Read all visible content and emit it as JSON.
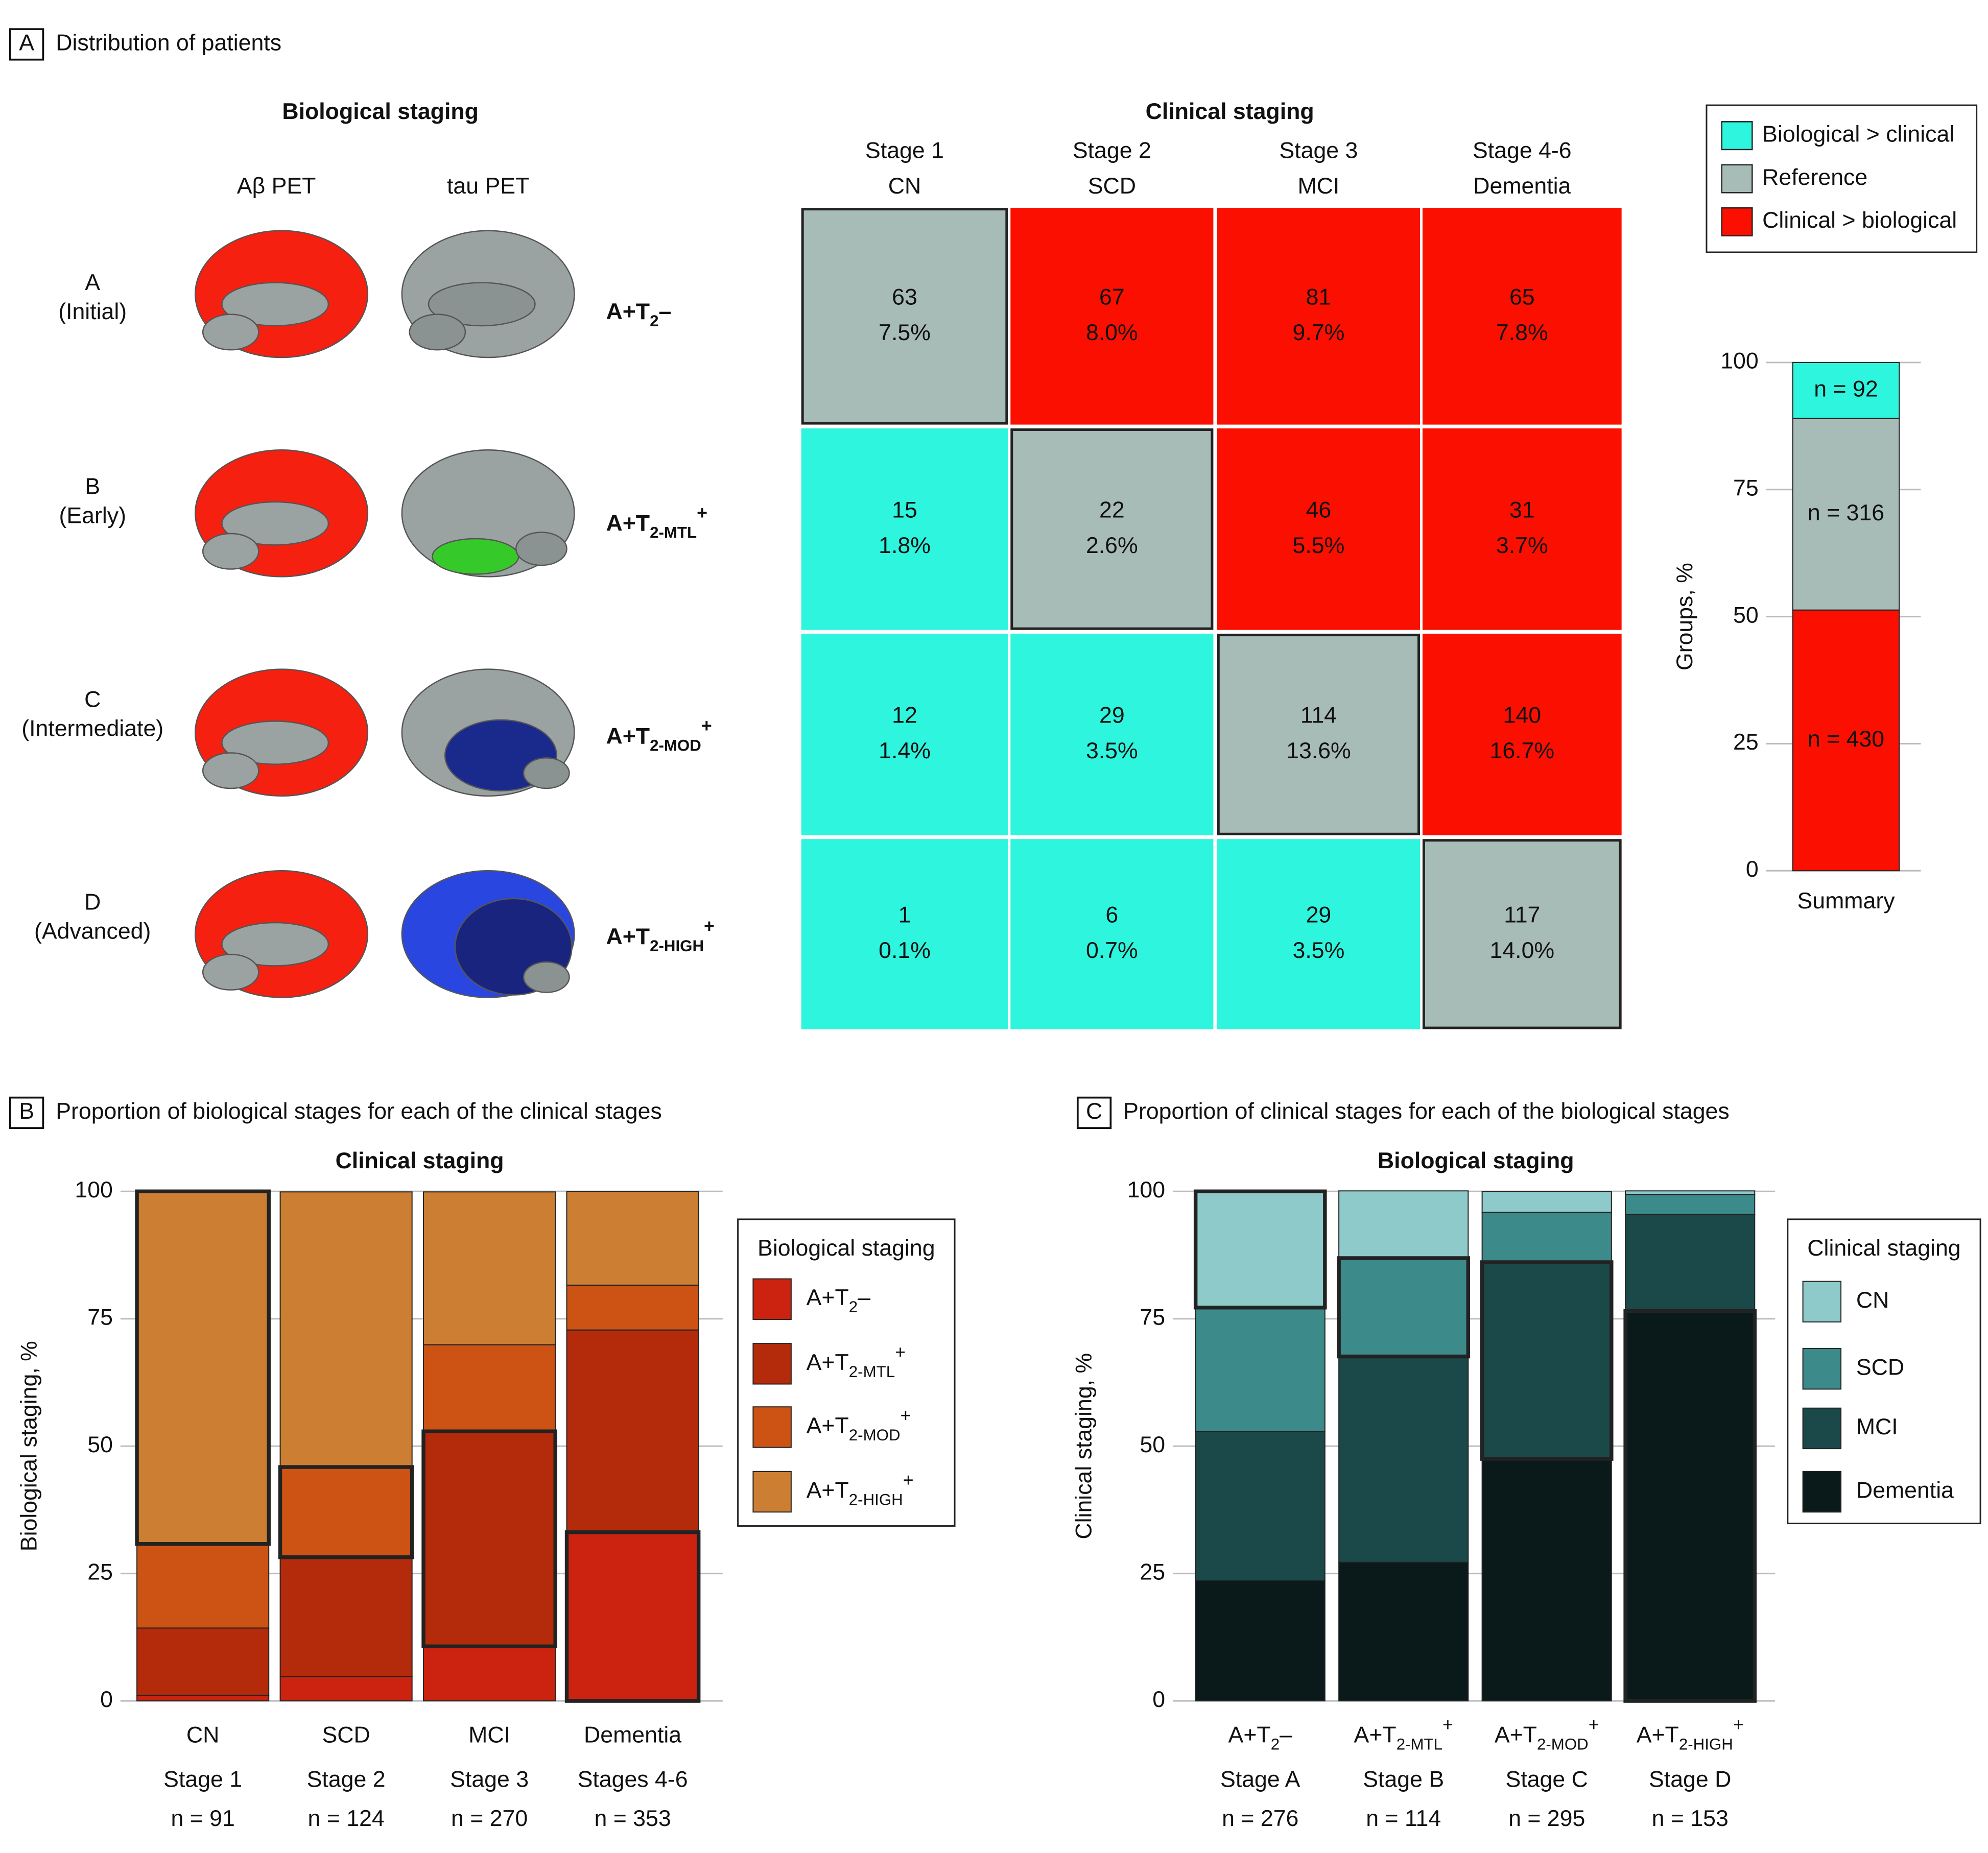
{
  "chart_data": [
    {
      "type": "matrix",
      "panel": "A",
      "title": "Distribution of patients",
      "row_title": "Biological staging",
      "col_title": "Clinical staging",
      "tracer_labels": [
        "Aβ PET",
        "tau PET"
      ],
      "rows": [
        {
          "letter": "A",
          "name": "(Initial)",
          "stage": {
            "main": "A+T",
            "sub": "2",
            "end": "–"
          }
        },
        {
          "letter": "B",
          "name": "(Early)",
          "stage": {
            "main": "A+T",
            "sub": "2-MTL",
            "sup": "+"
          }
        },
        {
          "letter": "C",
          "name": "(Intermediate)",
          "stage": {
            "main": "A+T",
            "sub": "2-MOD",
            "sup": "+"
          }
        },
        {
          "letter": "D",
          "name": "(Advanced)",
          "stage": {
            "main": "A+T",
            "sub": "2-HIGH",
            "sup": "+"
          }
        }
      ],
      "columns": [
        {
          "stage": "Stage 1",
          "name": "CN"
        },
        {
          "stage": "Stage 2",
          "name": "SCD"
        },
        {
          "stage": "Stage 3",
          "name": "MCI"
        },
        {
          "stage": "Stage 4-6",
          "name": "Dementia"
        }
      ],
      "values": [
        [
          63,
          67,
          81,
          65
        ],
        [
          15,
          22,
          46,
          31
        ],
        [
          12,
          29,
          114,
          140
        ],
        [
          1,
          6,
          29,
          117
        ]
      ],
      "percents": [
        [
          7.5,
          8.0,
          9.7,
          7.8
        ],
        [
          1.8,
          2.6,
          5.5,
          3.7
        ],
        [
          1.4,
          3.5,
          13.6,
          16.7
        ],
        [
          0.1,
          0.7,
          3.5,
          14.0
        ]
      ],
      "percent_labels": [
        [
          "7.5%",
          "8.0%",
          "9.7%",
          "7.8%"
        ],
        [
          "1.8%",
          "2.6%",
          "5.5%",
          "3.7%"
        ],
        [
          "1.4%",
          "3.5%",
          "13.6%",
          "16.7%"
        ],
        [
          "0.1%",
          "0.7%",
          "3.5%",
          "14.0%"
        ]
      ],
      "legend": [
        {
          "name": "Biological > clinical",
          "color": "#2ef5de"
        },
        {
          "name": "Reference",
          "color": "#a7bbb7"
        },
        {
          "name": "Clinical > biological",
          "color": "#fa0f00"
        }
      ]
    },
    {
      "type": "stacked_bar",
      "categories": [
        "Summary"
      ],
      "ylabel": "Groups, %",
      "ylim": [
        0,
        100
      ],
      "yticks": [
        0,
        25,
        50,
        75,
        100
      ],
      "grid": true,
      "series": [
        {
          "color": "#fa0f00",
          "values": [
            51.3
          ],
          "labels": [
            "n = 430"
          ]
        },
        {
          "color": "#a7bbb7",
          "values": [
            37.7
          ],
          "labels": [
            "n = 316"
          ]
        },
        {
          "color": "#2ef5de",
          "values": [
            11.0
          ],
          "labels": [
            "n = 92"
          ]
        }
      ]
    },
    {
      "type": "stacked_bar",
      "panel": "B",
      "title": "Proportion of biological stages for each of the clinical stages",
      "subtitle": "Clinical staging",
      "ylabel": "Biological staging, %",
      "ylim": [
        0,
        100
      ],
      "yticks": [
        0,
        25,
        50,
        75,
        100
      ],
      "grid": true,
      "stack": "first",
      "categories": [
        "CN",
        "SCD",
        "MCI",
        "Dementia"
      ],
      "category_stages": [
        "Stage 1",
        "Stage 2",
        "Stage 3",
        "Stages 4-6"
      ],
      "category_counts": [
        "n = 91",
        "n = 124",
        "n = 270",
        "n = 353"
      ],
      "outlined": [
        3,
        2,
        1,
        0
      ],
      "legend_title": "Biological staging",
      "series": [
        {
          "name": {
            "main": "A+T",
            "sub": "2",
            "end": "–"
          },
          "color": "#cc2311",
          "values": [
            1.1,
            4.8,
            10.7,
            33.1
          ]
        },
        {
          "name": {
            "main": "A+T",
            "sub": "2-MTL",
            "sup": "+"
          },
          "color": "#b32b0a",
          "values": [
            13.2,
            23.4,
            42.2,
            39.7
          ]
        },
        {
          "name": {
            "main": "A+T",
            "sub": "2-MOD",
            "sup": "+"
          },
          "color": "#cc5314",
          "values": [
            16.5,
            17.7,
            17.0,
            8.8
          ]
        },
        {
          "name": {
            "main": "A+T",
            "sub": "2-HIGH",
            "sup": "+"
          },
          "color": "#cc7e33",
          "values": [
            69.2,
            54.0,
            30.0,
            18.4
          ]
        }
      ]
    },
    {
      "type": "stacked_bar",
      "panel": "C",
      "title": "Proportion of clinical stages for each of the biological stages",
      "subtitle": "Biological staging",
      "ylabel": "Clinical staging, %",
      "ylim": [
        0,
        100
      ],
      "yticks": [
        0,
        25,
        50,
        75,
        100
      ],
      "grid": true,
      "stack": "last",
      "categories": [
        {
          "main": "A+T",
          "sub": "2",
          "end": "–"
        },
        {
          "main": "A+T",
          "sub": "2-MTL",
          "sup": "+"
        },
        {
          "main": "A+T",
          "sub": "2-MOD",
          "sup": "+"
        },
        {
          "main": "A+T",
          "sub": "2-HIGH",
          "sup": "+"
        }
      ],
      "category_stages": [
        "Stage A",
        "Stage B",
        "Stage C",
        "Stage D"
      ],
      "category_counts": [
        "n = 276",
        "n = 114",
        "n = 295",
        "n = 153"
      ],
      "outlined": [
        0,
        1,
        2,
        3
      ],
      "legend_title": "Clinical staging",
      "series": [
        {
          "name": "CN",
          "color": "#8ecac9",
          "values": [
            22.8,
            13.2,
            4.1,
            0.7
          ]
        },
        {
          "name": "SCD",
          "color": "#3c8a8a",
          "values": [
            24.3,
            19.3,
            9.8,
            3.9
          ]
        },
        {
          "name": "MCI",
          "color": "#1b4848",
          "values": [
            29.3,
            40.4,
            38.6,
            19.0
          ]
        },
        {
          "name": "Dementia",
          "color": "#0a1a1a",
          "values": [
            23.6,
            27.2,
            47.5,
            76.5
          ]
        }
      ]
    }
  ]
}
